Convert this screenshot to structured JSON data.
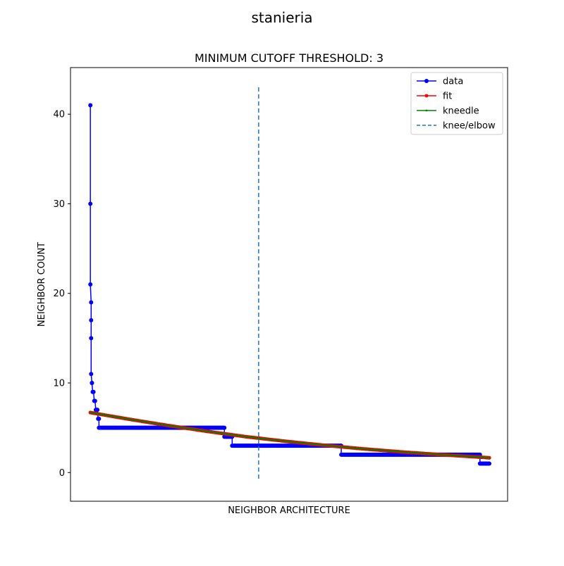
{
  "figure": {
    "suptitle": "stanieria"
  },
  "chart_data": {
    "type": "line",
    "title": "MINIMUM CUTOFF THRESHOLD: 3",
    "xlabel": "NEIGHBOR ARCHITECTURE",
    "ylabel": "NEIGHBOR COUNT",
    "xticks_visible": false,
    "ylim": [
      -3.2,
      45.2
    ],
    "yticks": [
      0,
      10,
      20,
      30,
      40
    ],
    "xlim": [
      -25.5,
      535.5
    ],
    "grid": false,
    "legend_position": "upper right",
    "series": [
      {
        "name": "data",
        "color": "#0000ff",
        "marker": "circle",
        "segments": [
          {
            "x": [
              0,
              0,
              0,
              1,
              1,
              1,
              1,
              2,
              2,
              3,
              4,
              5,
              6,
              7,
              8,
              9,
              10,
              11
            ],
            "y": [
              41,
              30,
              21,
              19,
              17,
              15,
              11,
              10,
              10,
              9,
              9,
              8,
              8,
              7,
              7,
              7,
              6,
              6
            ]
          },
          {
            "x": [
              11,
              172
            ],
            "y": [
              5,
              5
            ]
          },
          {
            "x": [
              172,
              182
            ],
            "y": [
              4,
              4
            ]
          },
          {
            "x": [
              182,
              322
            ],
            "y": [
              3,
              3
            ]
          },
          {
            "x": [
              322,
              500
            ],
            "y": [
              2,
              2
            ]
          },
          {
            "x": [
              500,
              512
            ],
            "y": [
              1,
              1
            ]
          }
        ]
      },
      {
        "name": "fit",
        "color": "#ff0000",
        "marker": "point",
        "x": [
          0,
          50,
          100,
          150,
          200,
          250,
          300,
          350,
          400,
          450,
          500,
          512
        ],
        "y": [
          6.7,
          5.95,
          5.25,
          4.6,
          4.0,
          3.5,
          3.05,
          2.65,
          2.3,
          2.0,
          1.72,
          1.65
        ]
      },
      {
        "name": "kneedle",
        "color": "#008000",
        "marker": "point",
        "x": [
          0,
          50,
          100,
          150,
          200,
          250,
          300,
          350,
          400,
          450,
          500,
          512
        ],
        "y": [
          6.7,
          5.95,
          5.25,
          4.6,
          4.0,
          3.5,
          3.05,
          2.65,
          2.3,
          2.0,
          1.72,
          1.65
        ]
      },
      {
        "name": "knee/elbow",
        "color": "#1f77b4",
        "style": "dashed",
        "x": [
          216,
          216
        ],
        "y": [
          -1,
          43
        ]
      }
    ]
  }
}
